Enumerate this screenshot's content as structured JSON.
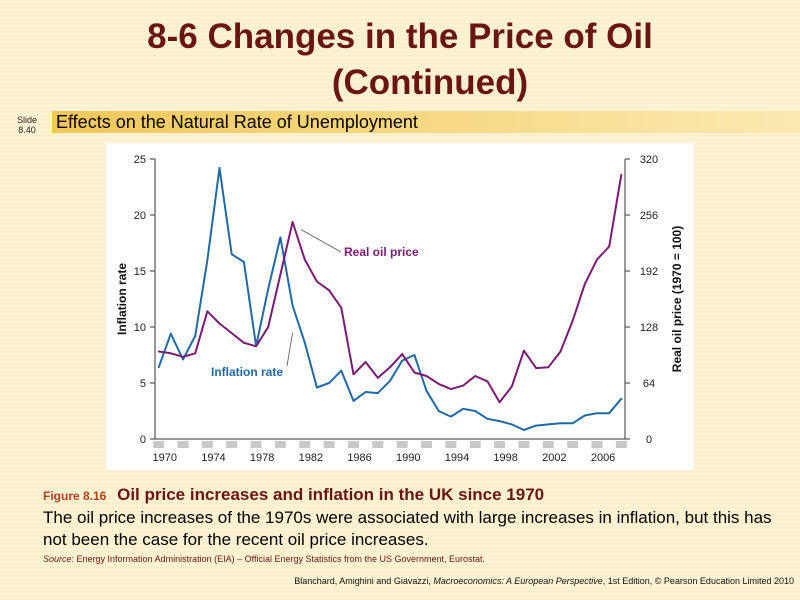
{
  "header": {
    "title_line1": "8-6  Changes in the Price of Oil",
    "title_line2": "(Continued)",
    "slide_label": "Slide",
    "slide_number": "8.40",
    "subtitle": "Effects on the Natural Rate of Unemployment"
  },
  "caption": {
    "figure_number": "Figure 8.16",
    "figure_title": "Oil price increases and inflation in the UK since 1970",
    "description": "The oil price increases of the 1970s were associated with large increases in inflation, but this has not been the case for the recent oil price increases.",
    "source_label": "Source",
    "source_text": ": Energy Information Administration (EIA) – Official Energy Statistics from the US Government, Eurostat."
  },
  "footer": {
    "text_before": "Blanchard, Amighini and Giavazzi, ",
    "book": "Macroeconomics: A European Perspective",
    "text_after": ", 1st Edition, © Pearson Education Limited 2010"
  },
  "chart_data": {
    "type": "line",
    "x": [
      1970,
      1971,
      1972,
      1973,
      1974,
      1975,
      1976,
      1977,
      1978,
      1979,
      1980,
      1981,
      1982,
      1983,
      1984,
      1985,
      1986,
      1987,
      1988,
      1989,
      1990,
      1991,
      1992,
      1993,
      1994,
      1995,
      1996,
      1997,
      1998,
      1999,
      2000,
      2001,
      2002,
      2003,
      2004,
      2005,
      2006,
      2007,
      2008
    ],
    "x_ticks": [
      "1970",
      "1974",
      "1978",
      "1982",
      "1986",
      "1990",
      "1994",
      "1998",
      "2002",
      "2006"
    ],
    "ylabel": "Inflation rate",
    "y2label": "Real oil price (1970 = 100)",
    "ylim": [
      0,
      25
    ],
    "y_ticks": [
      "0",
      "5",
      "10",
      "15",
      "20",
      "25"
    ],
    "y2lim": [
      0,
      320
    ],
    "y2_ticks": [
      "0",
      "64",
      "128",
      "192",
      "256",
      "320"
    ],
    "grid": false,
    "series": [
      {
        "name": "Inflation rate",
        "axis": "left",
        "color": "#1f6aa5",
        "values": [
          6.4,
          9.4,
          7.1,
          9.2,
          16.0,
          24.2,
          16.5,
          15.8,
          8.3,
          13.4,
          18.0,
          11.9,
          8.6,
          4.6,
          5.0,
          6.1,
          3.4,
          4.2,
          4.1,
          5.2,
          7.0,
          7.5,
          4.3,
          2.5,
          2.0,
          2.7,
          2.5,
          1.8,
          1.6,
          1.3,
          0.8,
          1.2,
          1.3,
          1.4,
          1.4,
          2.1,
          2.3,
          2.3,
          3.6
        ]
      },
      {
        "name": "Real oil price",
        "axis": "right",
        "color": "#7a1a75",
        "values": [
          100,
          98,
          94,
          98,
          146,
          132,
          121,
          110,
          106,
          128,
          188,
          248,
          205,
          180,
          170,
          150,
          74,
          88,
          70,
          82,
          97,
          76,
          72,
          63,
          57,
          61,
          72,
          66,
          42,
          60,
          101,
          81,
          82,
          100,
          135,
          177,
          205,
          220,
          302
        ]
      }
    ],
    "annotations": [
      "Real oil price",
      "Inflation rate"
    ]
  }
}
